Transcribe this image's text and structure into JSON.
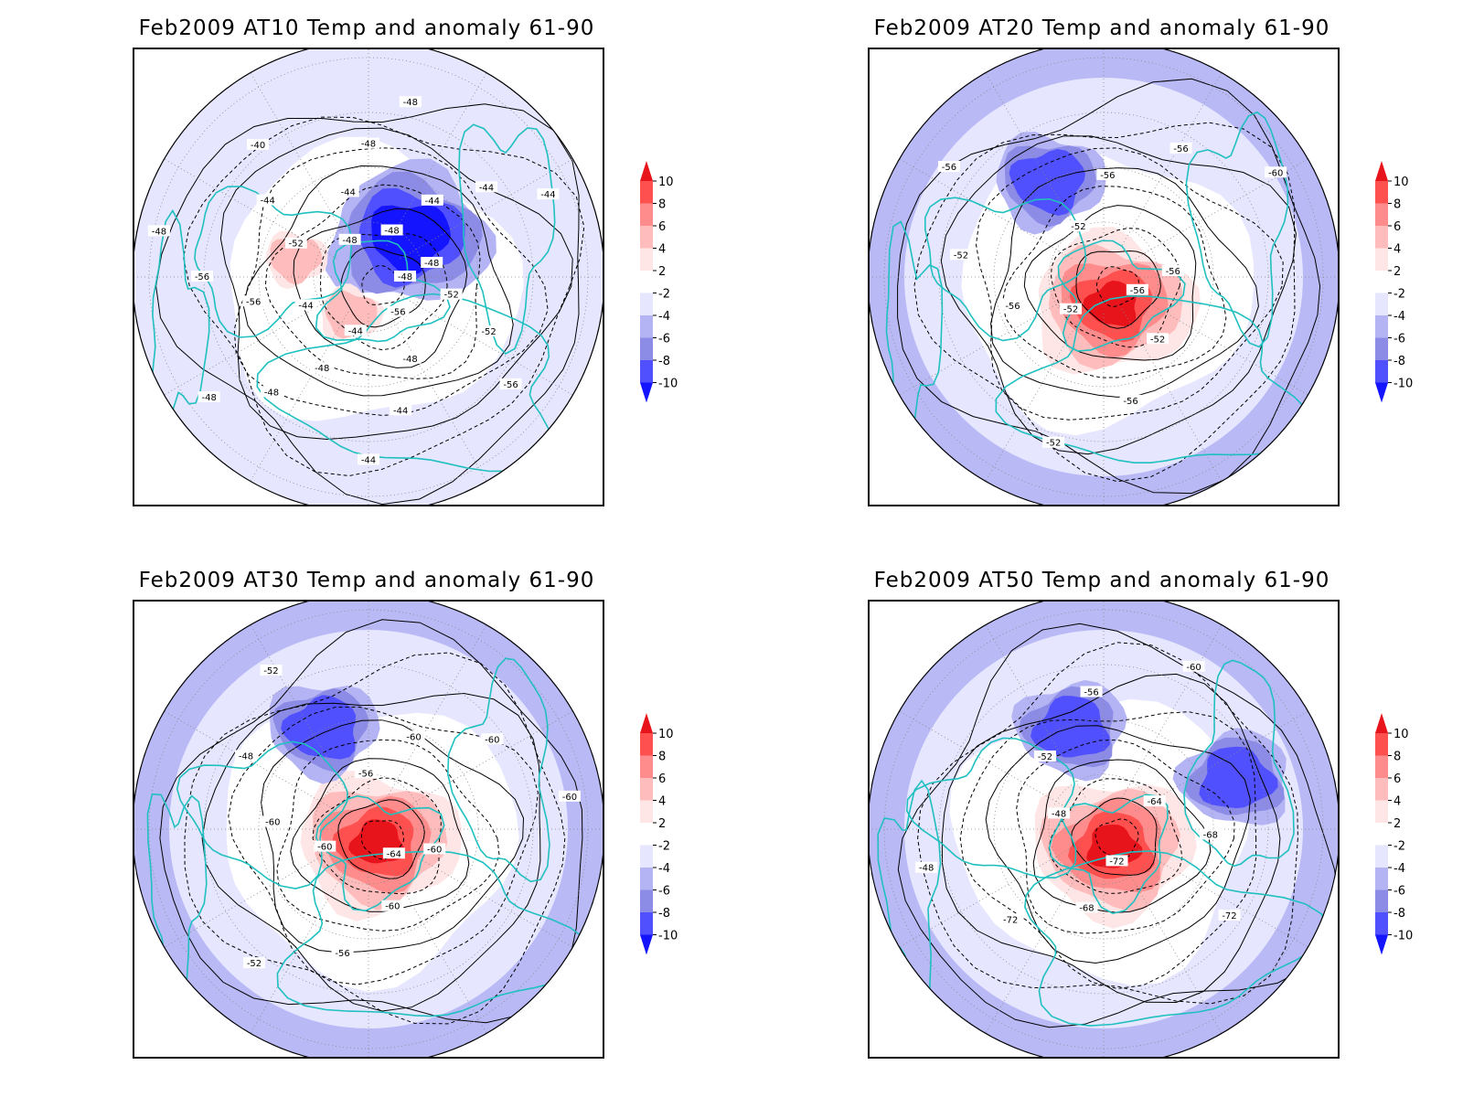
{
  "panels": [
    {
      "title": "Feb2009 AT10 Temp and anomaly 61-90",
      "contour_labels": [
        "-48",
        "-52",
        "-52",
        "-56",
        "-56",
        "-48",
        "-44",
        "-44",
        "-44",
        "-48",
        "-48",
        "-48",
        "-44",
        "-56",
        "-56",
        "-48",
        "-52",
        "-44",
        "-40",
        "-48",
        "-44",
        "-48",
        "-48",
        "-48",
        "-44",
        "-44",
        "-44",
        "-48"
      ],
      "anomaly_features": [
        {
          "type": "cold",
          "strength": 10
        },
        {
          "type": "warm",
          "strength": 4
        },
        {
          "type": "warm",
          "strength": 4
        }
      ]
    },
    {
      "title": "Feb2009 AT20 Temp and anomaly 61-90",
      "contour_labels": [
        "-56",
        "-52",
        "-56",
        "-52",
        "-52",
        "-56",
        "-52",
        "-56",
        "-52",
        "-56",
        "-56",
        "-60",
        "-56"
      ],
      "anomaly_features": [
        {
          "type": "warm",
          "strength": 10
        },
        {
          "type": "cold",
          "strength": 6
        }
      ]
    },
    {
      "title": "Feb2009 AT30 Temp and anomaly 61-90",
      "contour_labels": [
        "-64",
        "-60",
        "-56",
        "-52",
        "-60",
        "-60",
        "-48",
        "-52",
        "-56",
        "-60",
        "-60",
        "-60",
        "-60"
      ],
      "anomaly_features": [
        {
          "type": "warm",
          "strength": 10
        },
        {
          "type": "cold",
          "strength": 6
        }
      ]
    },
    {
      "title": "Feb2009 AT50 Temp and anomaly 61-90",
      "contour_labels": [
        "-72",
        "-68",
        "-72",
        "-48",
        "-48",
        "-52",
        "-56",
        "-60",
        "-64",
        "-68",
        "-72"
      ],
      "anomaly_features": [
        {
          "type": "warm",
          "strength": 10
        },
        {
          "type": "cold",
          "strength": 6
        },
        {
          "type": "cold",
          "strength": 6
        }
      ]
    }
  ],
  "colorbar": {
    "levels": [
      "10",
      "8",
      "6",
      "4",
      "2",
      "-2",
      "-4",
      "-6",
      "-8",
      "-10"
    ],
    "colors": [
      "#e8141c",
      "#ff5050",
      "#ff8c8c",
      "#ffbcbc",
      "#ffe6e6",
      "#ffffff",
      "#e6e6ff",
      "#b4b4f5",
      "#8c8ce6",
      "#5050ff",
      "#1414ff"
    ]
  }
}
